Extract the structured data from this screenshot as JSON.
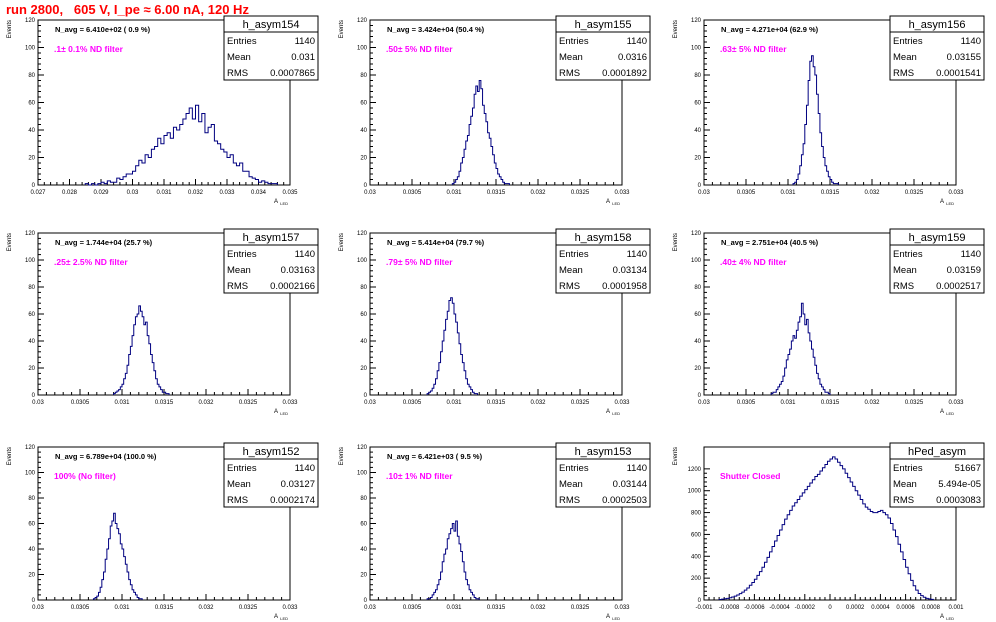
{
  "page": {
    "title": "run 2800,   605 V, I_pe ≈ 6.00 nA, 120 Hz",
    "title_color": "#ff0000",
    "line_color": "#000080",
    "annotation_color": "#ff00ff",
    "axis_label_x": "A",
    "axis_label_x_sub": "LED",
    "axis_label_y": "Events",
    "stats_labels": {
      "entries": "Entries",
      "mean": "Mean",
      "rms": "RMS"
    }
  },
  "chart_data": [
    {
      "type": "histogram",
      "name": "h_asym154",
      "n_avg": "N_avg = 6.410e+02 ( 0.9 %)",
      "filter": ".1± 0.1% ND filter",
      "stats": {
        "entries": "1140",
        "mean": "0.031",
        "rms": "0.0007865"
      },
      "xlim": [
        0.027,
        0.035
      ],
      "ylim": [
        0,
        120
      ],
      "xticks": [
        0.027,
        0.028,
        0.029,
        0.03,
        0.031,
        0.032,
        0.033,
        0.034,
        0.035
      ],
      "xtick_labels": [
        "0.027",
        "0.028",
        "0.029",
        "0.03",
        "0.031",
        "0.032",
        "0.033",
        "0.034",
        "0.035"
      ],
      "yticks": [
        0,
        20,
        40,
        60,
        80,
        100,
        120
      ],
      "x_start": 0.0285,
      "bin_width": 0.0001,
      "counts": [
        1,
        0,
        1,
        0,
        1,
        2,
        1,
        3,
        2,
        2,
        5,
        4,
        6,
        8,
        8,
        10,
        14,
        18,
        16,
        22,
        20,
        26,
        28,
        34,
        30,
        36,
        38,
        34,
        42,
        40,
        44,
        48,
        52,
        56,
        48,
        58,
        46,
        52,
        38,
        42,
        44,
        32,
        30,
        26,
        24,
        20,
        22,
        16,
        14,
        16,
        10,
        10,
        6,
        5,
        4,
        2,
        3,
        2,
        1,
        1,
        1
      ]
    },
    {
      "type": "histogram",
      "name": "h_asym155",
      "n_avg": "N_avg = 3.424e+04 (50.4 %)",
      "filter": ".50± 5% ND filter",
      "stats": {
        "entries": "1140",
        "mean": "0.0316",
        "rms": "0.0001892"
      },
      "xlim": [
        0.03,
        0.033
      ],
      "ylim": [
        0,
        120
      ],
      "xticks": [
        0.03,
        0.0305,
        0.031,
        0.0315,
        0.032,
        0.0325,
        0.033
      ],
      "xtick_labels": [
        "0.03",
        "0.0305",
        "0.031",
        "0.0315",
        "0.032",
        "0.0325",
        "0.033"
      ],
      "yticks": [
        0,
        20,
        40,
        60,
        80,
        100,
        120
      ],
      "x_start": 0.03098,
      "bin_width": 2e-05,
      "counts": [
        1,
        2,
        4,
        6,
        10,
        16,
        20,
        26,
        32,
        36,
        44,
        50,
        56,
        66,
        72,
        68,
        76,
        70,
        58,
        52,
        46,
        38,
        34,
        28,
        22,
        16,
        12,
        8,
        6,
        4,
        2,
        1,
        1,
        1
      ]
    },
    {
      "type": "histogram",
      "name": "h_asym156",
      "n_avg": "N_avg = 4.271e+04 (62.9 %)",
      "filter": ".63± 5% ND filter",
      "stats": {
        "entries": "1140",
        "mean": "0.03155",
        "rms": "0.0001541"
      },
      "xlim": [
        0.03,
        0.033
      ],
      "ylim": [
        0,
        120
      ],
      "xticks": [
        0.03,
        0.0305,
        0.031,
        0.0315,
        0.032,
        0.0325,
        0.033
      ],
      "xtick_labels": [
        "0.03",
        "0.0305",
        "0.031",
        "0.0315",
        "0.032",
        "0.0325",
        "0.033"
      ],
      "yticks": [
        0,
        20,
        40,
        60,
        80,
        100,
        120
      ],
      "x_start": 0.03106,
      "bin_width": 2e-05,
      "counts": [
        1,
        2,
        4,
        8,
        14,
        22,
        30,
        44,
        58,
        76,
        90,
        94,
        86,
        80,
        66,
        52,
        38,
        28,
        20,
        14,
        10,
        6,
        4,
        2,
        1,
        1,
        1
      ]
    },
    {
      "type": "histogram",
      "name": "h_asym157",
      "n_avg": "N_avg = 1.744e+04 (25.7 %)",
      "filter": ".25± 2.5% ND filter",
      "stats": {
        "entries": "1140",
        "mean": "0.03163",
        "rms": "0.0002166"
      },
      "xlim": [
        0.03,
        0.033
      ],
      "ylim": [
        0,
        120
      ],
      "xticks": [
        0.03,
        0.0305,
        0.031,
        0.0315,
        0.032,
        0.0325,
        0.033
      ],
      "xtick_labels": [
        "0.03",
        "0.0305",
        "0.031",
        "0.0315",
        "0.032",
        "0.0325",
        "0.033"
      ],
      "yticks": [
        0,
        20,
        40,
        60,
        80,
        100,
        120
      ],
      "x_start": 0.0309,
      "bin_width": 2e-05,
      "counts": [
        1,
        2,
        3,
        4,
        6,
        8,
        12,
        16,
        22,
        30,
        36,
        44,
        52,
        58,
        60,
        66,
        62,
        58,
        52,
        54,
        44,
        38,
        30,
        24,
        18,
        12,
        8,
        6,
        4,
        2,
        2,
        1,
        1
      ]
    },
    {
      "type": "histogram",
      "name": "h_asym158",
      "n_avg": "N_avg = 5.414e+04 (79.7 %)",
      "filter": ".79± 5% ND filter",
      "stats": {
        "entries": "1140",
        "mean": "0.03134",
        "rms": "0.0001958"
      },
      "xlim": [
        0.03,
        0.033
      ],
      "ylim": [
        0,
        120
      ],
      "xticks": [
        0.03,
        0.0305,
        0.031,
        0.0315,
        0.032,
        0.0325,
        0.033
      ],
      "xtick_labels": [
        "0.03",
        "0.0305",
        "0.031",
        "0.0315",
        "0.032",
        "0.0325",
        "0.033"
      ],
      "yticks": [
        0,
        20,
        40,
        60,
        80,
        100,
        120
      ],
      "x_start": 0.03068,
      "bin_width": 2e-05,
      "counts": [
        1,
        2,
        3,
        5,
        8,
        12,
        18,
        24,
        32,
        40,
        48,
        56,
        62,
        70,
        72,
        68,
        60,
        54,
        46,
        38,
        30,
        24,
        18,
        12,
        8,
        6,
        4,
        2,
        1,
        1
      ]
    },
    {
      "type": "histogram",
      "name": "h_asym159",
      "n_avg": "N_avg = 2.751e+04 (40.5 %)",
      "filter": ".40± 4% ND filter",
      "stats": {
        "entries": "1140",
        "mean": "0.03159",
        "rms": "0.0002517"
      },
      "xlim": [
        0.03,
        0.033
      ],
      "ylim": [
        0,
        120
      ],
      "xticks": [
        0.03,
        0.0305,
        0.031,
        0.0315,
        0.032,
        0.0325,
        0.033
      ],
      "xtick_labels": [
        "0.03",
        "0.0305",
        "0.031",
        "0.0315",
        "0.032",
        "0.0325",
        "0.033"
      ],
      "yticks": [
        0,
        20,
        40,
        60,
        80,
        100,
        120
      ],
      "x_start": 0.0308,
      "bin_width": 2e-05,
      "counts": [
        1,
        2,
        2,
        4,
        6,
        8,
        10,
        14,
        20,
        26,
        30,
        34,
        40,
        44,
        42,
        48,
        54,
        58,
        68,
        60,
        52,
        56,
        46,
        40,
        34,
        28,
        22,
        16,
        12,
        8,
        6,
        4,
        2,
        2,
        1
      ]
    },
    {
      "type": "histogram",
      "name": "h_asym152",
      "n_avg": "N_avg = 6.789e+04 (100.0 %)",
      "filter": "100% (No filter)",
      "stats": {
        "entries": "1140",
        "mean": "0.03127",
        "rms": "0.0002174"
      },
      "xlim": [
        0.03,
        0.033
      ],
      "ylim": [
        0,
        120
      ],
      "xticks": [
        0.03,
        0.0305,
        0.031,
        0.0315,
        0.032,
        0.0325,
        0.033
      ],
      "xtick_labels": [
        "0.03",
        "0.0305",
        "0.031",
        "0.0315",
        "0.032",
        "0.0325",
        "0.033"
      ],
      "yticks": [
        0,
        20,
        40,
        60,
        80,
        100,
        120
      ],
      "x_start": 0.03066,
      "bin_width": 2e-05,
      "counts": [
        1,
        2,
        3,
        6,
        10,
        16,
        22,
        32,
        40,
        48,
        58,
        62,
        68,
        60,
        56,
        52,
        44,
        40,
        34,
        28,
        22,
        16,
        12,
        8,
        6,
        4,
        2,
        1,
        1
      ]
    },
    {
      "type": "histogram",
      "name": "h_asym153",
      "n_avg": "N_avg = 6.421e+03 ( 9.5 %)",
      "filter": ".10± 1% ND filter",
      "stats": {
        "entries": "1140",
        "mean": "0.03144",
        "rms": "0.0002503"
      },
      "xlim": [
        0.03,
        0.033
      ],
      "ylim": [
        0,
        120
      ],
      "xticks": [
        0.03,
        0.0305,
        0.031,
        0.0315,
        0.032,
        0.0325,
        0.033
      ],
      "xtick_labels": [
        "0.03",
        "0.0305",
        "0.031",
        "0.0315",
        "0.032",
        "0.0325",
        "0.033"
      ],
      "yticks": [
        0,
        20,
        40,
        60,
        80,
        100,
        120
      ],
      "x_start": 0.03068,
      "bin_width": 2e-05,
      "counts": [
        1,
        1,
        2,
        4,
        6,
        8,
        12,
        16,
        22,
        30,
        36,
        40,
        48,
        52,
        56,
        60,
        54,
        62,
        50,
        44,
        38,
        30,
        22,
        16,
        12,
        8,
        6,
        4,
        2,
        1,
        1
      ]
    },
    {
      "type": "histogram",
      "name": "hPed_asym",
      "n_avg": "",
      "filter": "Shutter Closed",
      "stats": {
        "entries": "51667",
        "mean": "5.494e-05",
        "rms": "0.0003083"
      },
      "xlim": [
        -0.001,
        0.001
      ],
      "ylim": [
        0,
        1400
      ],
      "xticks": [
        -0.001,
        -0.0008,
        -0.0006,
        -0.0004,
        -0.0002,
        0,
        0.0002,
        0.0004,
        0.0006,
        0.0008,
        0.001
      ],
      "xtick_labels": [
        "-0.001",
        "-0.0008",
        "-0.0006",
        "-0.0004",
        "-0.0002",
        "0",
        "0.0002",
        "0.0004",
        "0.0006",
        "0.0008",
        "0.001"
      ],
      "yticks": [
        0,
        200,
        400,
        600,
        800,
        1000,
        1200
      ],
      "x_start": -0.00088,
      "bin_width": 2e-05,
      "counts": [
        5,
        8,
        12,
        15,
        20,
        28,
        36,
        46,
        58,
        72,
        90,
        110,
        135,
        160,
        190,
        225,
        260,
        300,
        345,
        390,
        440,
        490,
        540,
        590,
        640,
        690,
        740,
        780,
        820,
        860,
        890,
        920,
        950,
        980,
        1010,
        1040,
        1070,
        1100,
        1130,
        1150,
        1180,
        1210,
        1240,
        1270,
        1290,
        1310,
        1290,
        1260,
        1230,
        1200,
        1160,
        1120,
        1080,
        1040,
        1000,
        960,
        920,
        880,
        850,
        830,
        810,
        800,
        800,
        810,
        820,
        800,
        780,
        750,
        700,
        640,
        580,
        510,
        440,
        370,
        300,
        240,
        180,
        130,
        90,
        60,
        40,
        25,
        15,
        10,
        6
      ]
    }
  ]
}
